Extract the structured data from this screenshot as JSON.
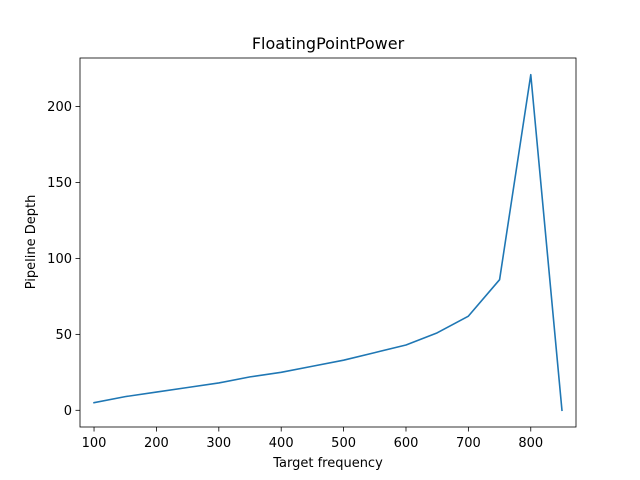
{
  "chart_data": {
    "type": "line",
    "title": "FloatingPointPower",
    "xlabel": "Target frequency",
    "ylabel": "Pipeline Depth",
    "xlim": [
      77.5,
      872.5
    ],
    "ylim": [
      -11,
      232
    ],
    "xticks": [
      100,
      200,
      300,
      400,
      500,
      600,
      700,
      800
    ],
    "yticks": [
      0,
      50,
      100,
      150,
      200
    ],
    "grid": false,
    "series": [
      {
        "color": "#1f77b4",
        "x": [
          100,
          150,
          200,
          250,
          300,
          350,
          400,
          450,
          500,
          550,
          600,
          650,
          700,
          750,
          800,
          850
        ],
        "y": [
          5,
          9,
          12,
          15,
          18,
          22,
          25,
          29,
          33,
          38,
          43,
          51,
          62,
          86,
          221,
          0
        ]
      }
    ]
  }
}
